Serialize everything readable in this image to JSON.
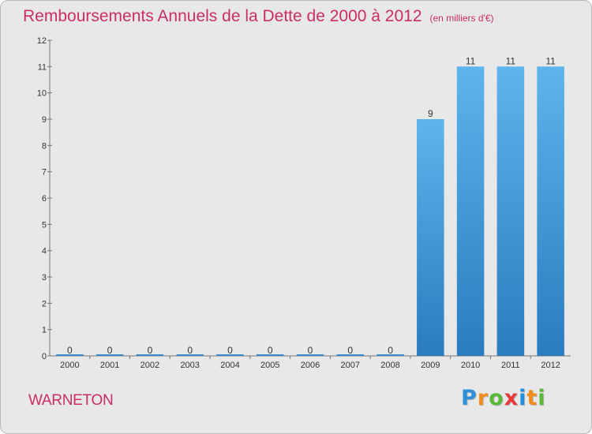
{
  "title": "Remboursements Annuels de la Dette de 2000 à 2012",
  "subtitle": "(en milliers d'€)",
  "commune": "WARNETON",
  "brand": {
    "letters": [
      "P",
      "r",
      "o",
      "x",
      "i",
      "t",
      "i"
    ],
    "colors": [
      "#2f8fd8",
      "#f28c1f",
      "#58b93a",
      "#e83a3a",
      "#1f8fe0",
      "#f28c1f",
      "#58b93a"
    ]
  },
  "colors": {
    "bar_top": "#5eb4ec",
    "bar_bottom": "#2a7cbf",
    "zero_bar": "#3a8ad0",
    "title": "#cc2e63",
    "background": "#e8e8e8"
  },
  "chart_data": {
    "type": "bar",
    "title": "Remboursements Annuels de la Dette de 2000 à 2012",
    "subtitle": "(en milliers d'€)",
    "categories": [
      "2000",
      "2001",
      "2002",
      "2003",
      "2004",
      "2005",
      "2006",
      "2007",
      "2008",
      "2009",
      "2010",
      "2011",
      "2012"
    ],
    "values": [
      0,
      0,
      0,
      0,
      0,
      0,
      0,
      0,
      0,
      9,
      11,
      11,
      11
    ],
    "value_labels": [
      "0",
      "0",
      "0",
      "0",
      "0",
      "0",
      "0",
      "0",
      "0",
      "9",
      "11",
      "11",
      "11"
    ],
    "ylim": [
      0,
      12
    ],
    "yticks": [
      0,
      1,
      2,
      3,
      4,
      5,
      6,
      7,
      8,
      9,
      10,
      11,
      12
    ],
    "xlabel": "",
    "ylabel": "",
    "grid": false,
    "legend": "none"
  }
}
